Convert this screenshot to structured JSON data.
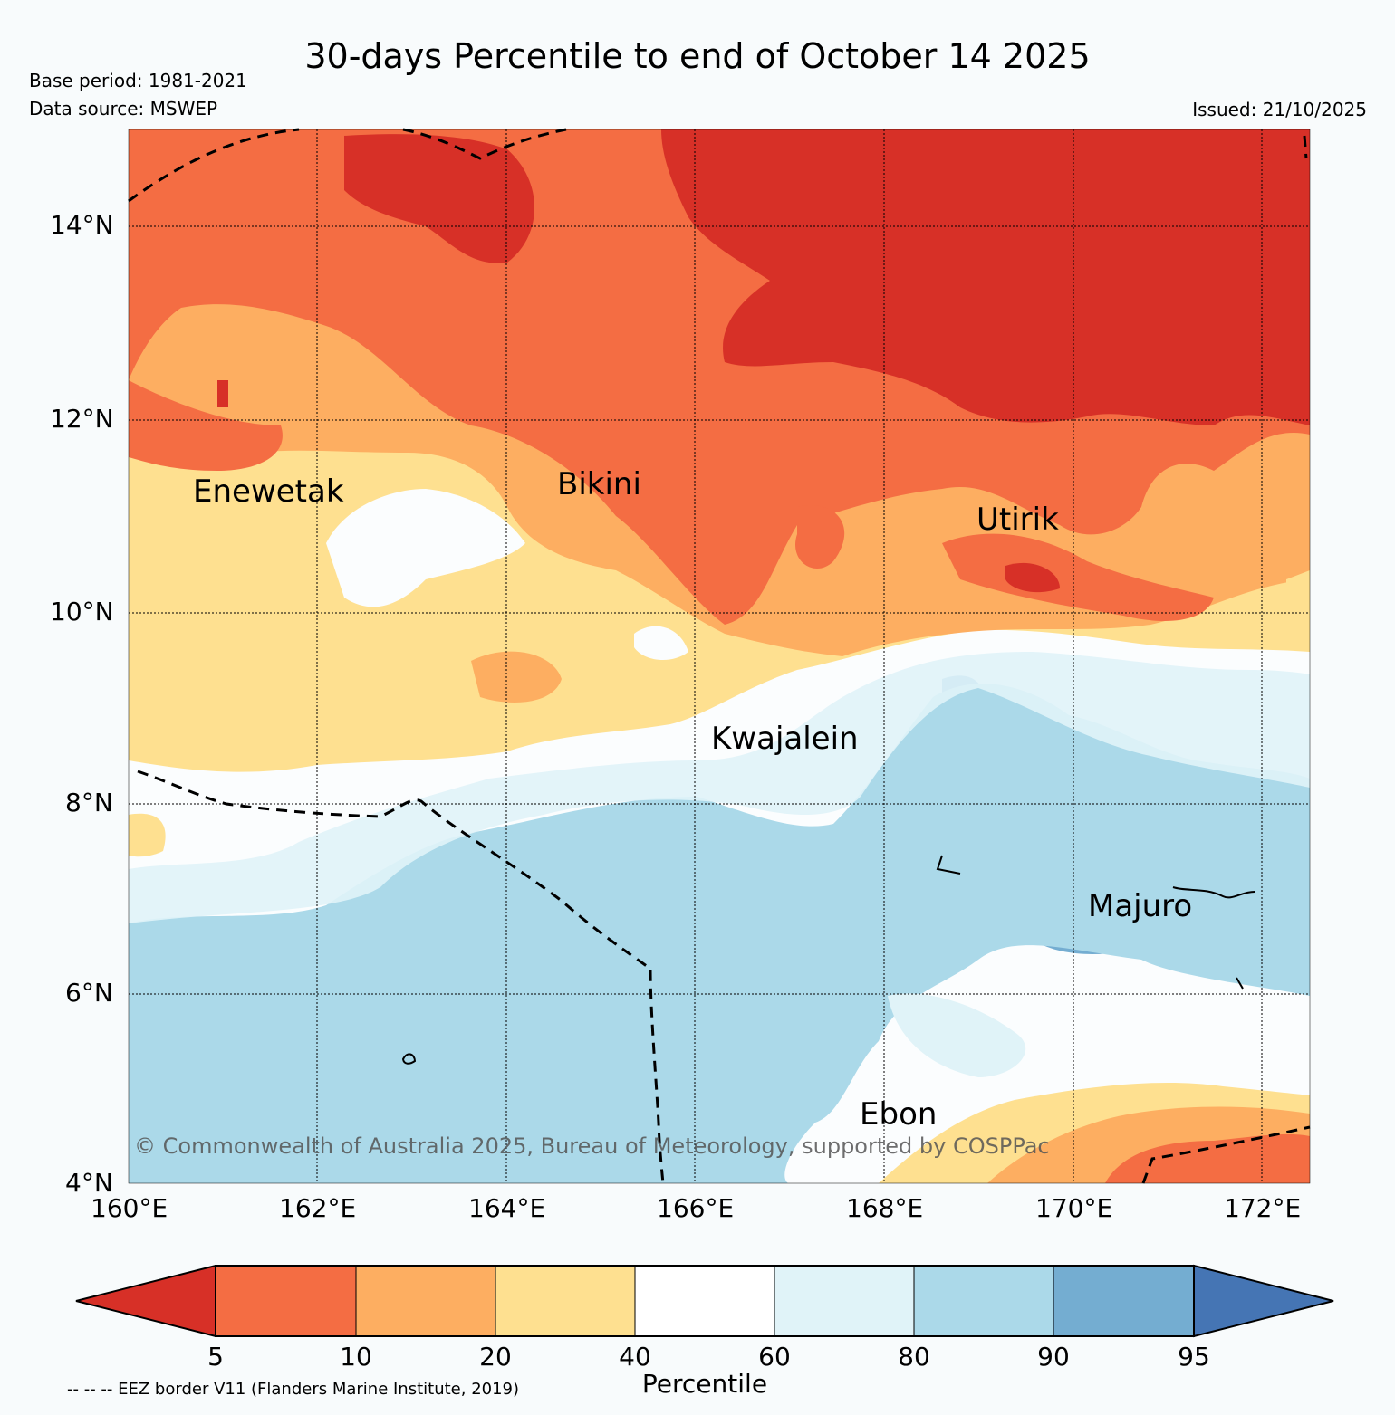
{
  "title": "30-days Percentile to end of October 14 2025",
  "base_period": "Base period: 1981-2021",
  "data_source": "Data source: MSWEP",
  "issued": "Issued: 21/10/2025",
  "lat_labels": [
    "14°N",
    "12°N",
    "10°N",
    "8°N",
    "6°N",
    "4°N"
  ],
  "lon_labels": [
    "160°E",
    "162°E",
    "164°E",
    "166°E",
    "168°E",
    "170°E",
    "172°E"
  ],
  "places": {
    "enewetak": "Enewetak",
    "bikini": "Bikini",
    "utirik": "Utirik",
    "kwajalein": "Kwajalein",
    "majuro": "Majuro",
    "ebon": "Ebon"
  },
  "copyright": "© Commonwealth of Australia 2025, Bureau of Meteorology, supported by COSPPac",
  "colorbar": {
    "label": "Percentile",
    "ticks": [
      "5",
      "10",
      "20",
      "40",
      "60",
      "80",
      "90",
      "95"
    ],
    "colors": [
      "#d73027",
      "#f46d43",
      "#fdae61",
      "#fee090",
      "#fbfdfe",
      "#e0f3f8",
      "#abd9e9",
      "#74add1",
      "#4575b4"
    ]
  },
  "eez_note": "-- -- -- EEZ border V11 (Flanders Marine Institute, 2019)"
}
